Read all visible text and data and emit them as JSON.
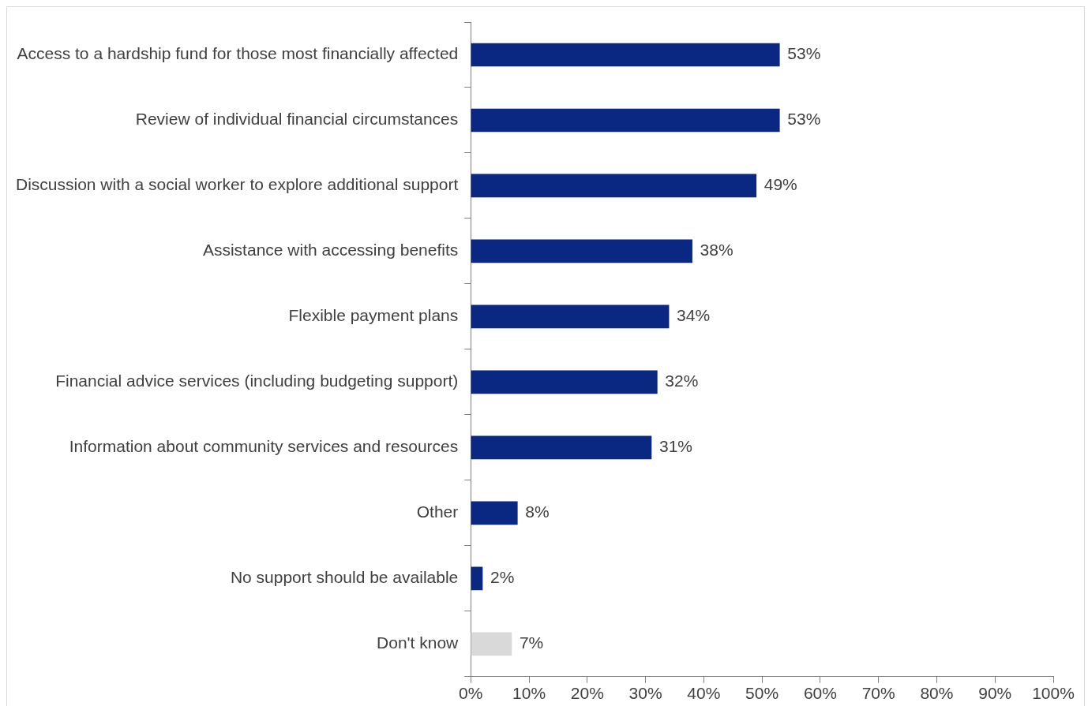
{
  "chart_data": {
    "type": "bar",
    "orientation": "horizontal",
    "categories": [
      "Access to a hardship fund for those most financially affected",
      "Review of individual financial circumstances",
      "Discussion with a social worker to explore additional support",
      "Assistance with accessing benefits",
      "Flexible payment plans",
      "Financial advice services (including budgeting support)",
      "Information about community services and resources",
      "Other",
      "No support should be available",
      "Don't know"
    ],
    "values": [
      53,
      53,
      49,
      38,
      34,
      32,
      31,
      8,
      2,
      7
    ],
    "colors": [
      "#0a2882",
      "#0a2882",
      "#0a2882",
      "#0a2882",
      "#0a2882",
      "#0a2882",
      "#0a2882",
      "#0a2882",
      "#0a2882",
      "#d9d9d9"
    ],
    "value_labels": [
      "53%",
      "53%",
      "49%",
      "38%",
      "34%",
      "32%",
      "31%",
      "8%",
      "2%",
      "7%"
    ],
    "xlim": [
      0,
      100
    ],
    "xticks": [
      {
        "value": 0,
        "label": "0%"
      },
      {
        "value": 10,
        "label": "10%"
      },
      {
        "value": 20,
        "label": "20%"
      },
      {
        "value": 30,
        "label": "30%"
      },
      {
        "value": 40,
        "label": "40%"
      },
      {
        "value": 50,
        "label": "50%"
      },
      {
        "value": 60,
        "label": "60%"
      },
      {
        "value": 70,
        "label": "70%"
      },
      {
        "value": 80,
        "label": "80%"
      },
      {
        "value": 90,
        "label": "90%"
      },
      {
        "value": 100,
        "label": "100%"
      }
    ],
    "grid": false,
    "legend": false
  }
}
